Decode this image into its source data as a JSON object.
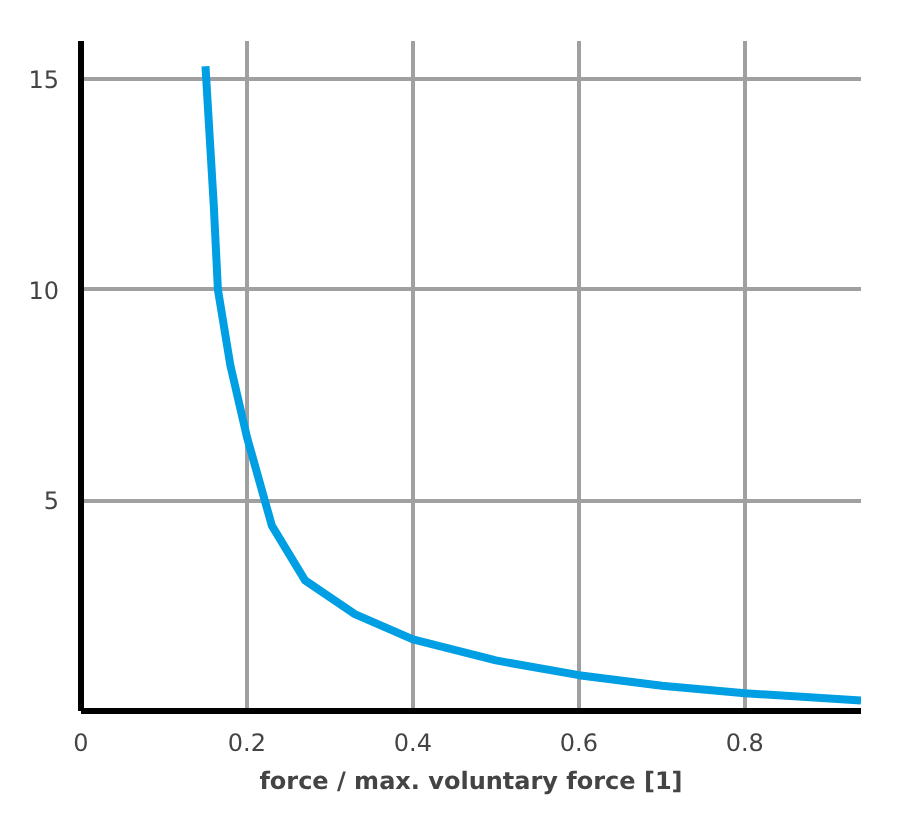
{
  "chart_data": {
    "type": "line",
    "xlabel": "force / max. voluntary force [1]",
    "x": [
      0.15,
      0.16,
      0.165,
      0.18,
      0.2,
      0.23,
      0.27,
      0.33,
      0.4,
      0.5,
      0.6,
      0.7,
      0.8,
      0.94
    ],
    "series": [
      {
        "color": "#009fe3",
        "values": [
          15.3,
          12,
          10,
          8.2,
          6.5,
          4.4,
          3.1,
          2.3,
          1.7,
          1.2,
          0.85,
          0.6,
          0.42,
          0.25
        ]
      }
    ],
    "xlim": [
      0,
      0.94
    ],
    "ylim": [
      0,
      15.9
    ],
    "xticks": [
      0,
      0.2,
      0.4,
      0.6,
      0.8
    ],
    "yticks": [
      {
        "value": 0,
        "label": null
      },
      5,
      10,
      15
    ],
    "grid": true,
    "marker": "none",
    "line_style": "solid"
  }
}
